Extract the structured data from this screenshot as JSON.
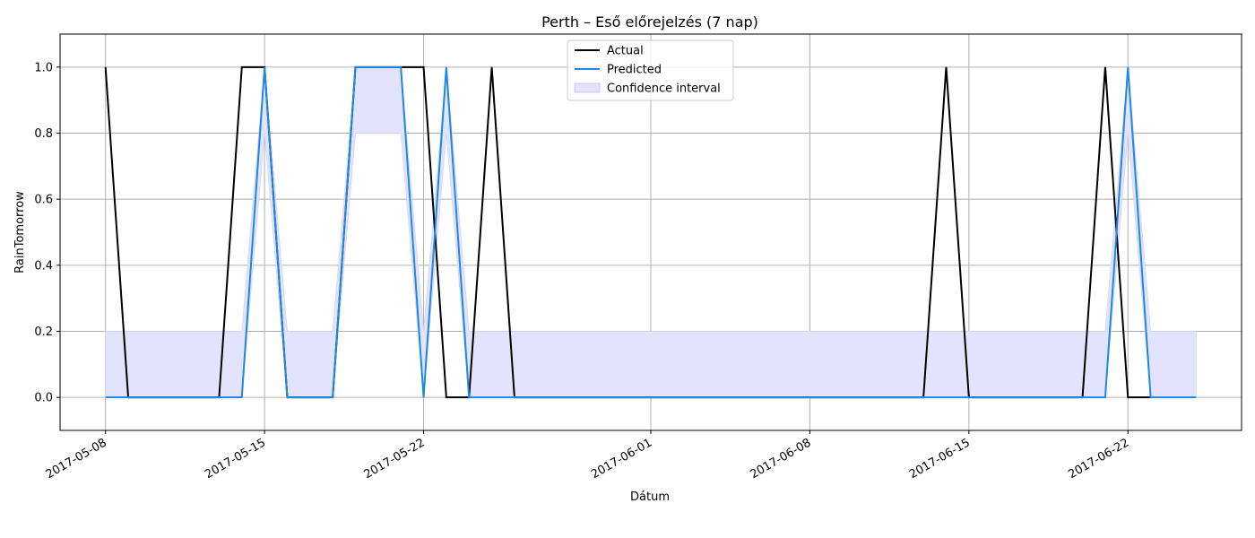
{
  "chart_data": {
    "type": "line",
    "title": "Perth – Eső előrejelzés (7 nap)",
    "xlabel": "Dátum",
    "ylabel": "RainTomorrow",
    "ylim": [
      -0.1,
      1.1
    ],
    "xlim": [
      "2017-05-06",
      "2017-06-27"
    ],
    "grid": true,
    "legend_position": "top-center",
    "y_ticks": [
      "0.0",
      "0.2",
      "0.4",
      "0.6",
      "0.8",
      "1.0"
    ],
    "x_ticks": [
      "2017-05-08",
      "2017-05-15",
      "2017-05-22",
      "2017-06-01",
      "2017-06-08",
      "2017-06-15",
      "2017-06-22"
    ],
    "x": [
      "2017-05-08",
      "2017-05-09",
      "2017-05-10",
      "2017-05-11",
      "2017-05-12",
      "2017-05-13",
      "2017-05-14",
      "2017-05-15",
      "2017-05-16",
      "2017-05-17",
      "2017-05-18",
      "2017-05-19",
      "2017-05-20",
      "2017-05-21",
      "2017-05-22",
      "2017-05-23",
      "2017-05-24",
      "2017-05-25",
      "2017-05-26",
      "2017-05-27",
      "2017-05-28",
      "2017-05-29",
      "2017-05-30",
      "2017-05-31",
      "2017-06-01",
      "2017-06-02",
      "2017-06-03",
      "2017-06-04",
      "2017-06-05",
      "2017-06-06",
      "2017-06-07",
      "2017-06-08",
      "2017-06-09",
      "2017-06-10",
      "2017-06-11",
      "2017-06-12",
      "2017-06-13",
      "2017-06-14",
      "2017-06-15",
      "2017-06-16",
      "2017-06-17",
      "2017-06-18",
      "2017-06-19",
      "2017-06-20",
      "2017-06-21",
      "2017-06-22",
      "2017-06-23",
      "2017-06-24",
      "2017-06-25"
    ],
    "series": [
      {
        "name": "Actual",
        "color": "#000000",
        "values": [
          1,
          0,
          0,
          0,
          0,
          0,
          1,
          1,
          0,
          0,
          0,
          1,
          1,
          1,
          1,
          0,
          0,
          1,
          0,
          0,
          0,
          0,
          0,
          0,
          0,
          0,
          0,
          0,
          0,
          0,
          0,
          0,
          0,
          0,
          0,
          0,
          0,
          1,
          0,
          0,
          0,
          0,
          0,
          0,
          1,
          0,
          0,
          null,
          null
        ]
      },
      {
        "name": "Predicted",
        "color": "#1e88e5",
        "values": [
          0,
          0,
          0,
          0,
          0,
          0,
          0,
          1,
          0,
          0,
          0,
          1,
          1,
          1,
          0,
          1,
          0,
          0,
          0,
          0,
          0,
          0,
          0,
          0,
          0,
          0,
          0,
          0,
          0,
          0,
          0,
          0,
          0,
          0,
          0,
          0,
          0,
          0,
          0,
          0,
          0,
          0,
          0,
          0,
          0,
          1,
          0,
          0,
          0
        ]
      }
    ],
    "confidence_interval": {
      "name": "Confidence interval",
      "color": "#e3e3fd",
      "lower": [
        0,
        0,
        0,
        0,
        0,
        0,
        0,
        0.8,
        0,
        0,
        0,
        0.8,
        0.8,
        0.8,
        0,
        0.8,
        0,
        0,
        0,
        0,
        0,
        0,
        0,
        0,
        0,
        0,
        0,
        0,
        0,
        0,
        0,
        0,
        0,
        0,
        0,
        0,
        0,
        0,
        0,
        0,
        0,
        0,
        0,
        0,
        0,
        0.8,
        0,
        0,
        0
      ],
      "upper": [
        0.2,
        0.2,
        0.2,
        0.2,
        0.2,
        0.2,
        0.2,
        1,
        0.2,
        0.2,
        0.2,
        1,
        1,
        1,
        0.2,
        1,
        0.2,
        0.2,
        0.2,
        0.2,
        0.2,
        0.2,
        0.2,
        0.2,
        0.2,
        0.2,
        0.2,
        0.2,
        0.2,
        0.2,
        0.2,
        0.2,
        0.2,
        0.2,
        0.2,
        0.2,
        0.2,
        0.2,
        0.2,
        0.2,
        0.2,
        0.2,
        0.2,
        0.2,
        0.2,
        1,
        0.2,
        0.2,
        0.2
      ]
    }
  }
}
